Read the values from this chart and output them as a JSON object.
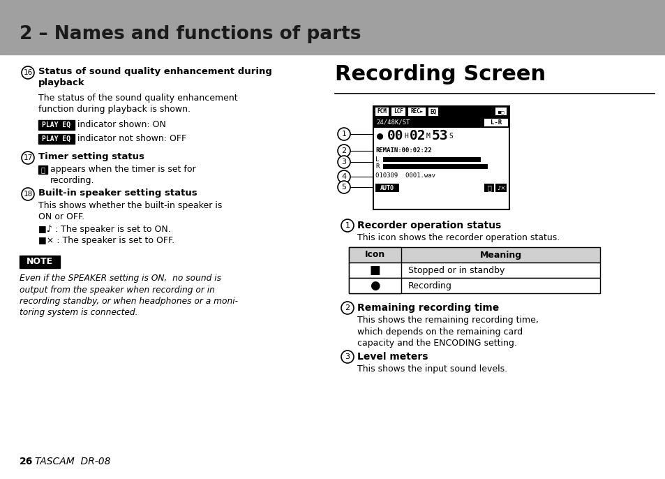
{
  "bg_color": "#ffffff",
  "header_bg": "#a0a0a0",
  "header_text": "2 – Names and functions of parts",
  "header_text_color": "#1a1a1a",
  "page_num": "26",
  "page_tascam": "TASCAM  DR-08",
  "note_label": "NOTE",
  "note_text": "Even if the SPEAKER setting is ON,  no sound is\noutput from the speaker when recording or in\nrecording standby, or when headphones or a moni-\ntoring system is connected.",
  "right_title": "Recording Screen",
  "table_headers": [
    "Icon",
    "Meaning"
  ],
  "table_rows": [
    [
      "■",
      "Stopped or in standby"
    ],
    [
      "●",
      "Recording"
    ]
  ],
  "table_header_bg": "#d0d0d0",
  "table_border_color": "#000000"
}
